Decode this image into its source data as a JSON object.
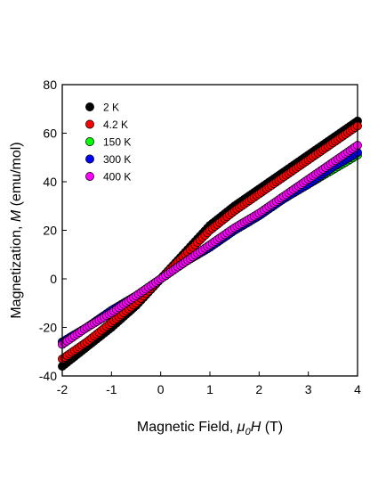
{
  "chart_data": {
    "type": "scatter",
    "xlabel_prefix": "Magnetic Field, ",
    "xlabel_symbol": "μ",
    "xlabel_subscript": "0",
    "xlabel_var": "H",
    "xlabel_unit": " (T)",
    "ylabel_prefix": "Magnetization, ",
    "ylabel_var": "M",
    "ylabel_unit": " (emu/mol)",
    "xlim": [
      -2,
      4
    ],
    "ylim": [
      -40,
      80
    ],
    "xticks": [
      "-2",
      "-1",
      "0",
      "1",
      "2",
      "3",
      "4"
    ],
    "yticks": [
      "-40",
      "-20",
      "0",
      "20",
      "40",
      "60",
      "80"
    ],
    "grid": false,
    "legend_position": "top-left",
    "series": [
      {
        "name": "2 K",
        "color": "#000000",
        "x": [
          -2,
          -1.5,
          -1,
          -0.5,
          0,
          0.5,
          1,
          1.5,
          2,
          2.5,
          3,
          3.5,
          4
        ],
        "y": [
          -36,
          -28,
          -20,
          -11,
          0,
          11,
          22,
          30,
          37,
          44,
          51,
          58,
          65
        ]
      },
      {
        "name": "4.2 K",
        "color": "#ff0000",
        "x": [
          -2,
          -1.5,
          -1,
          -0.5,
          0,
          0.5,
          1,
          1.5,
          2,
          2.5,
          3,
          3.5,
          4
        ],
        "y": [
          -33,
          -26,
          -18,
          -10,
          0,
          10,
          20,
          28,
          35,
          42,
          49,
          56,
          63
        ]
      },
      {
        "name": "150 K",
        "color": "#00ff00",
        "x": [
          -2,
          -1.5,
          -1,
          -0.5,
          0,
          0.5,
          1,
          1.5,
          2,
          2.5,
          3,
          3.5,
          4
        ],
        "y": [
          -26,
          -20,
          -13,
          -7,
          0,
          7,
          13,
          20,
          26,
          33,
          39,
          45,
          51
        ]
      },
      {
        "name": "300 K",
        "color": "#0000ff",
        "x": [
          -2,
          -1.5,
          -1,
          -0.5,
          0,
          0.5,
          1,
          1.5,
          2,
          2.5,
          3,
          3.5,
          4
        ],
        "y": [
          -26,
          -20,
          -13,
          -7,
          0,
          7,
          13,
          20,
          26,
          33,
          39,
          46,
          52
        ]
      },
      {
        "name": "400 K",
        "color": "#ff00ff",
        "x": [
          -2,
          -1.5,
          -1,
          -0.5,
          0,
          0.5,
          1,
          1.5,
          2,
          2.5,
          3,
          3.5,
          4
        ],
        "y": [
          -27,
          -20,
          -14,
          -7,
          0,
          7,
          14,
          21,
          27,
          34,
          41,
          48,
          55
        ]
      }
    ]
  }
}
